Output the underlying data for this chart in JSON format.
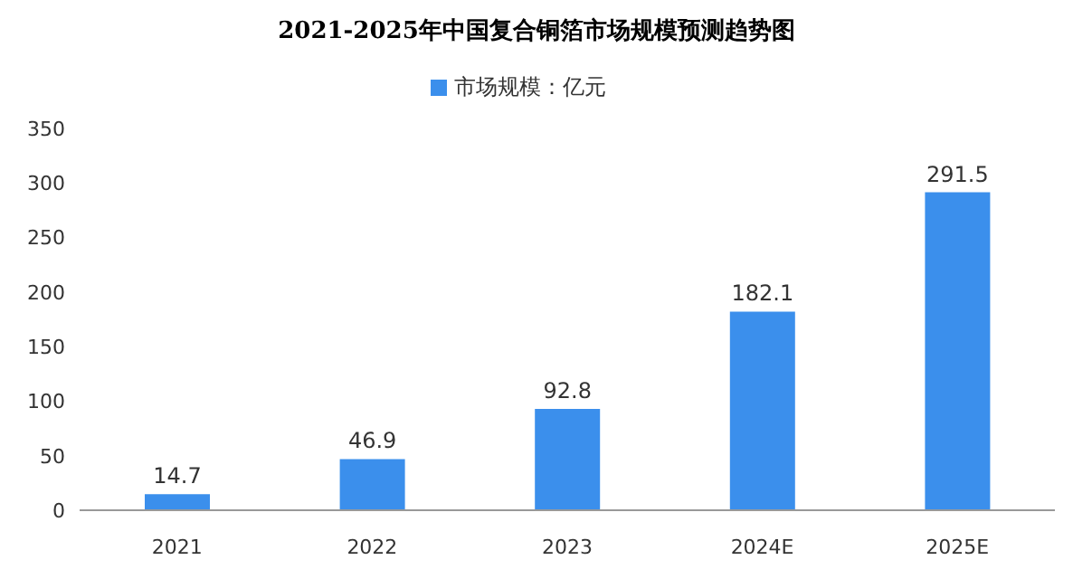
{
  "chart_data": {
    "type": "bar",
    "title": "2021-2025年中国复合铜箔市场规模预测趋势图",
    "categories": [
      "2021",
      "2022",
      "2023",
      "2024E",
      "2025E"
    ],
    "series": [
      {
        "name": "市场规模：亿元",
        "color": "#3b8fec",
        "values": [
          14.7,
          46.9,
          92.8,
          182.1,
          291.5
        ]
      }
    ],
    "ylim": [
      0,
      350
    ],
    "yticks": [
      0,
      50,
      100,
      150,
      200,
      250,
      300,
      350
    ],
    "grid": false,
    "legend": "top",
    "data_labels": true
  }
}
